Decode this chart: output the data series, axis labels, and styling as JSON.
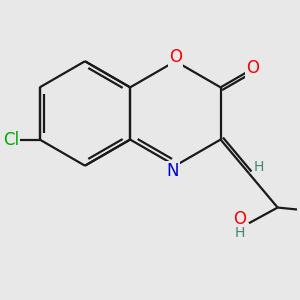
{
  "bg_color": "#e8e8e8",
  "bond_color": "#1a1a1a",
  "bond_width": 1.6,
  "atom_colors": {
    "O": "#ff0000",
    "N": "#0000cc",
    "Cl": "#00aa00",
    "H_label": "#3a8a6e",
    "C": "#1a1a1a"
  },
  "font_size": 12,
  "small_font_size": 10
}
